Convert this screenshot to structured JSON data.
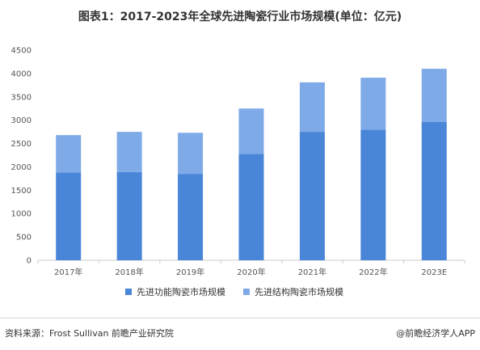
{
  "title": "图表1：2017-2023年全球先进陶瓷行业市场规模(单位：亿元)",
  "source": "资料来源：Frost Sullivan 前瞻产业研究院",
  "brand": "@前瞻经济学人APP",
  "colors": {
    "functional": "#4a86d8",
    "structural": "#7faae8",
    "axis": "#cccccc"
  },
  "chart_data": {
    "type": "bar",
    "stacked": true,
    "categories": [
      "2017年",
      "2018年",
      "2019年",
      "2020年",
      "2021年",
      "2022年",
      "2023E"
    ],
    "series": [
      {
        "name": "先进功能陶瓷市场规模",
        "values": [
          1880,
          1890,
          1850,
          2280,
          2750,
          2800,
          2960
        ]
      },
      {
        "name": "先进结构陶瓷市场规模",
        "values": [
          800,
          860,
          880,
          970,
          1060,
          1110,
          1140
        ]
      }
    ],
    "yticks": [
      0,
      500,
      1000,
      1500,
      2000,
      2500,
      3000,
      3500,
      4000,
      4500
    ],
    "ylim": [
      0,
      4500
    ],
    "grid": false,
    "legend_position": "bottom"
  }
}
